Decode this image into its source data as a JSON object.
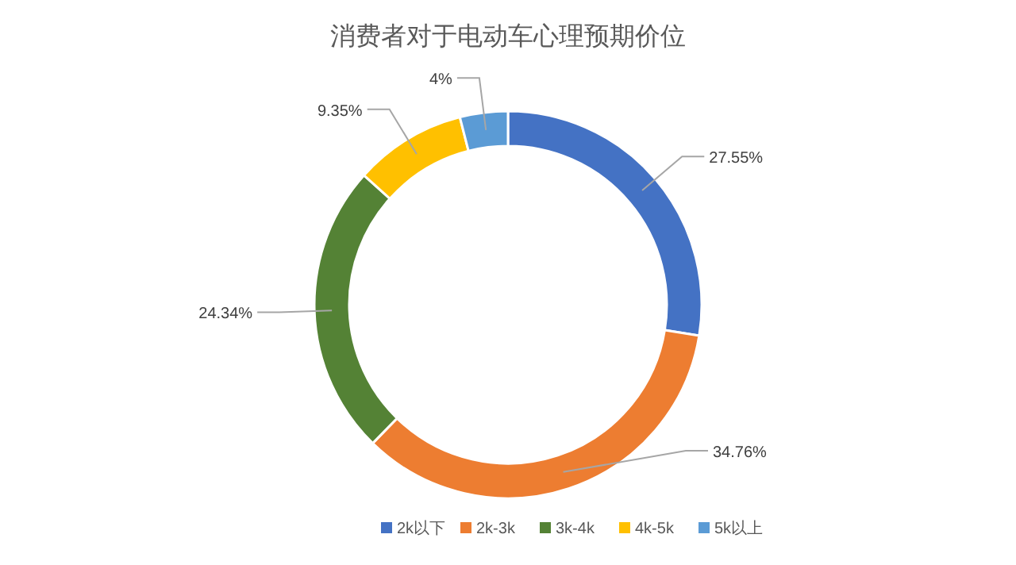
{
  "chart_data": {
    "type": "donut",
    "title": "消费者对于电动车心理预期价位",
    "categories": [
      "2k以下",
      "2k-3k",
      "3k-4k",
      "4k-5k",
      "5k以上"
    ],
    "values": [
      27.55,
      34.76,
      24.34,
      9.35,
      4
    ],
    "colors": [
      "#4472c4",
      "#ed7d31",
      "#548235",
      "#ffc000",
      "#5b9bd5"
    ],
    "value_labels": [
      "27.55%",
      "34.76%",
      "24.34%",
      "9.35%",
      "4%"
    ],
    "legend": "bottom"
  }
}
